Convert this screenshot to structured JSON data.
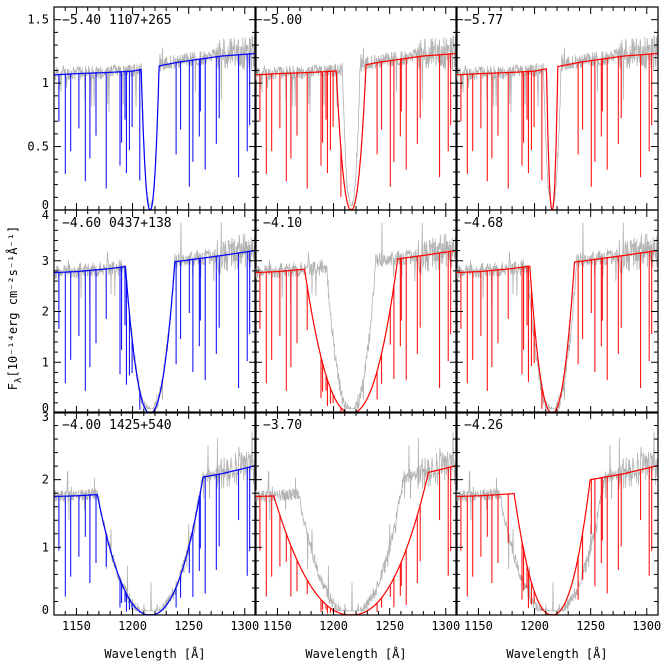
{
  "chart_data": {
    "type": "line",
    "x": {
      "range": [
        1130,
        1310
      ],
      "ticks": [
        1150,
        1200,
        1250,
        1300
      ]
    },
    "xlabel": "Wavelength [Å]",
    "ylabel": "F",
    "ylabel_sub": "λ",
    "ylabel_unit": "[10⁻¹⁴erg cm⁻²s⁻¹Å⁻¹]",
    "colors": {
      "observed": "#b3b3b3",
      "fit": "#0000ff",
      "alt": "#ff0000"
    },
    "rows": [
      {
        "star": "1107+265",
        "ylim": [
          0,
          1.6
        ],
        "yticks": [
          0,
          0.5,
          1,
          1.5
        ],
        "ytick_labels": [
          "0",
          "0.5",
          "1",
          "1.5"
        ],
        "continuum": {
          "x": [
            1130,
            1150,
            1180,
            1200,
            1240,
            1280,
            1310
          ],
          "y": [
            1.07,
            1.08,
            1.09,
            1.1,
            1.17,
            1.22,
            1.24
          ]
        },
        "panels": [
          {
            "label": "−5.40",
            "series": "fit",
            "logH": -5.4
          },
          {
            "label": "−5.00",
            "series": "alt",
            "logH": -5.0
          },
          {
            "label": "−5.77",
            "series": "alt",
            "logH": -5.77
          }
        ]
      },
      {
        "star": "0437+138",
        "ylim": [
          0,
          4
        ],
        "yticks": [
          0,
          1,
          2,
          3,
          4
        ],
        "ytick_labels": [
          "0",
          "1",
          "2",
          "3",
          "4"
        ],
        "continuum": {
          "x": [
            1130,
            1150,
            1180,
            1200,
            1240,
            1280,
            1310
          ],
          "y": [
            2.78,
            2.8,
            2.86,
            2.92,
            3.0,
            3.12,
            3.22
          ]
        },
        "panels": [
          {
            "label": "−4.60",
            "series": "fit",
            "logH": -4.6
          },
          {
            "label": "−4.10",
            "series": "alt",
            "logH": -4.1
          },
          {
            "label": "−4.68",
            "series": "alt",
            "logH": -4.68
          }
        ]
      },
      {
        "star": "1425+540",
        "ylim": [
          0,
          3
        ],
        "yticks": [
          0,
          1,
          2,
          3
        ],
        "ytick_labels": [
          "0",
          "1",
          "2",
          "3"
        ],
        "continuum": {
          "x": [
            1130,
            1150,
            1180,
            1200,
            1240,
            1280,
            1310
          ],
          "y": [
            1.76,
            1.77,
            1.8,
            1.85,
            1.98,
            2.1,
            2.22
          ]
        },
        "panels": [
          {
            "label": "−4.00",
            "series": "fit",
            "logH": -4.0
          },
          {
            "label": "−3.70",
            "series": "alt",
            "logH": -3.7
          },
          {
            "label": "−4.26",
            "series": "alt",
            "logH": -4.26
          }
        ]
      }
    ]
  }
}
